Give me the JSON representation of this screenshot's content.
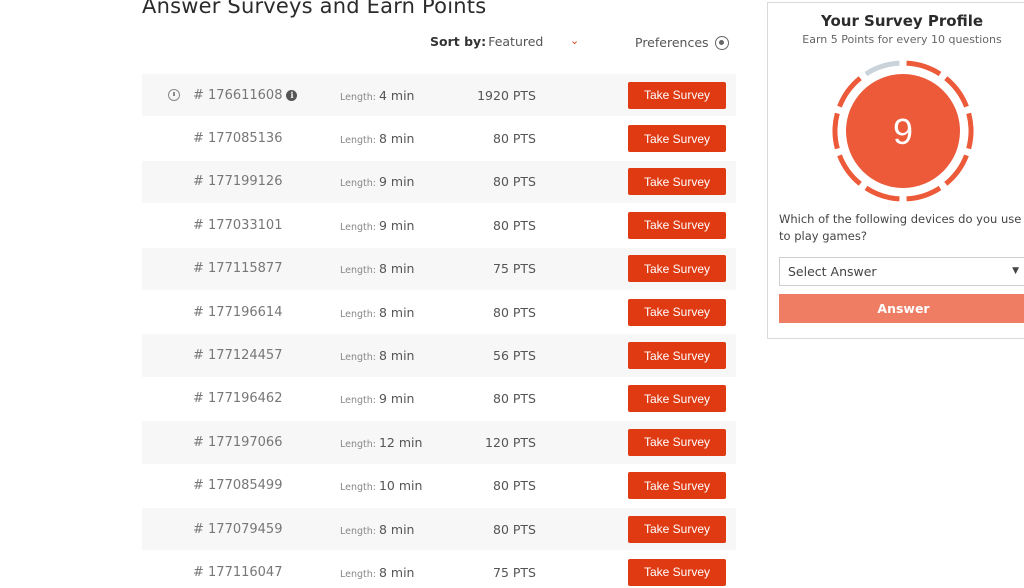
{
  "page": {
    "title": "Answer Surveys and Earn Points"
  },
  "controls": {
    "sort_label": "Sort by:",
    "sort_value": "Featured",
    "preferences_label": "Preferences"
  },
  "length_label": "Length:",
  "action_label": "Take Survey",
  "surveys": [
    {
      "id": "# 176611608",
      "length": "4 min",
      "points": "1920 PTS"
    },
    {
      "id": "# 177085136",
      "length": "8 min",
      "points": "80 PTS"
    },
    {
      "id": "# 177199126",
      "length": "9 min",
      "points": "80 PTS"
    },
    {
      "id": "# 177033101",
      "length": "9 min",
      "points": "80 PTS"
    },
    {
      "id": "# 177115877",
      "length": "8 min",
      "points": "75 PTS"
    },
    {
      "id": "# 177196614",
      "length": "8 min",
      "points": "80 PTS"
    },
    {
      "id": "# 177124457",
      "length": "8 min",
      "points": "56 PTS"
    },
    {
      "id": "# 177196462",
      "length": "9 min",
      "points": "80 PTS"
    },
    {
      "id": "# 177197066",
      "length": "12 min",
      "points": "120 PTS"
    },
    {
      "id": "# 177085499",
      "length": "10 min",
      "points": "80 PTS"
    },
    {
      "id": "# 177079459",
      "length": "8 min",
      "points": "80 PTS"
    },
    {
      "id": "# 177116047",
      "length": "8 min",
      "points": "75 PTS"
    }
  ],
  "profile": {
    "title": "Your Survey Profile",
    "subtitle": "Earn 5 Points for every 10 questions",
    "count": "9",
    "segments_total": 10,
    "segments_done": 9,
    "question": "Which of the following devices do you use to play games?",
    "select_placeholder": "Select Answer",
    "answer_label": "Answer"
  },
  "colors": {
    "accent": "#df3a12",
    "ring_active": "#ec5a3a",
    "ring_inactive": "#c9d3d9",
    "answer_button": "#ee7d63"
  }
}
